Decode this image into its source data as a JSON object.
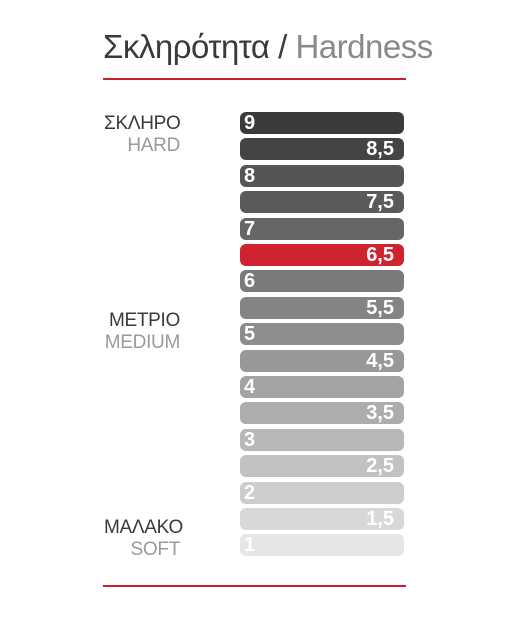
{
  "title": {
    "greek": "Σκληρότητα",
    "separator": "/",
    "english": "Hardness"
  },
  "labels": {
    "hard": {
      "greek": "ΣΚΛΗΡΟ",
      "english": "HARD"
    },
    "medium": {
      "greek": "ΜΕΤΡΙΟ",
      "english": "MEDIUM"
    },
    "soft": {
      "greek": "ΜΑΛΑΚΟ",
      "english": "SOFT"
    }
  },
  "scale": {
    "highlight_value": "6,5",
    "highlight_color": "#cf2330",
    "levels": [
      {
        "value": "9",
        "color": "#3b3b3b"
      },
      {
        "value": "8,5",
        "color": "#444444"
      },
      {
        "value": "8",
        "color": "#555555"
      },
      {
        "value": "7,5",
        "color": "#5a5a5a"
      },
      {
        "value": "7",
        "color": "#666666"
      },
      {
        "value": "6,5",
        "color": "#cf2330"
      },
      {
        "value": "6",
        "color": "#7a7a7a"
      },
      {
        "value": "5,5",
        "color": "#848484"
      },
      {
        "value": "5",
        "color": "#8d8d8d"
      },
      {
        "value": "4,5",
        "color": "#989898"
      },
      {
        "value": "4",
        "color": "#a3a3a3"
      },
      {
        "value": "3,5",
        "color": "#adadad"
      },
      {
        "value": "3",
        "color": "#b8b8b8"
      },
      {
        "value": "2,5",
        "color": "#c2c2c2"
      },
      {
        "value": "2",
        "color": "#cdcdcd"
      },
      {
        "value": "1,5",
        "color": "#d8d8d8"
      },
      {
        "value": "1",
        "color": "#e6e6e6"
      }
    ]
  }
}
